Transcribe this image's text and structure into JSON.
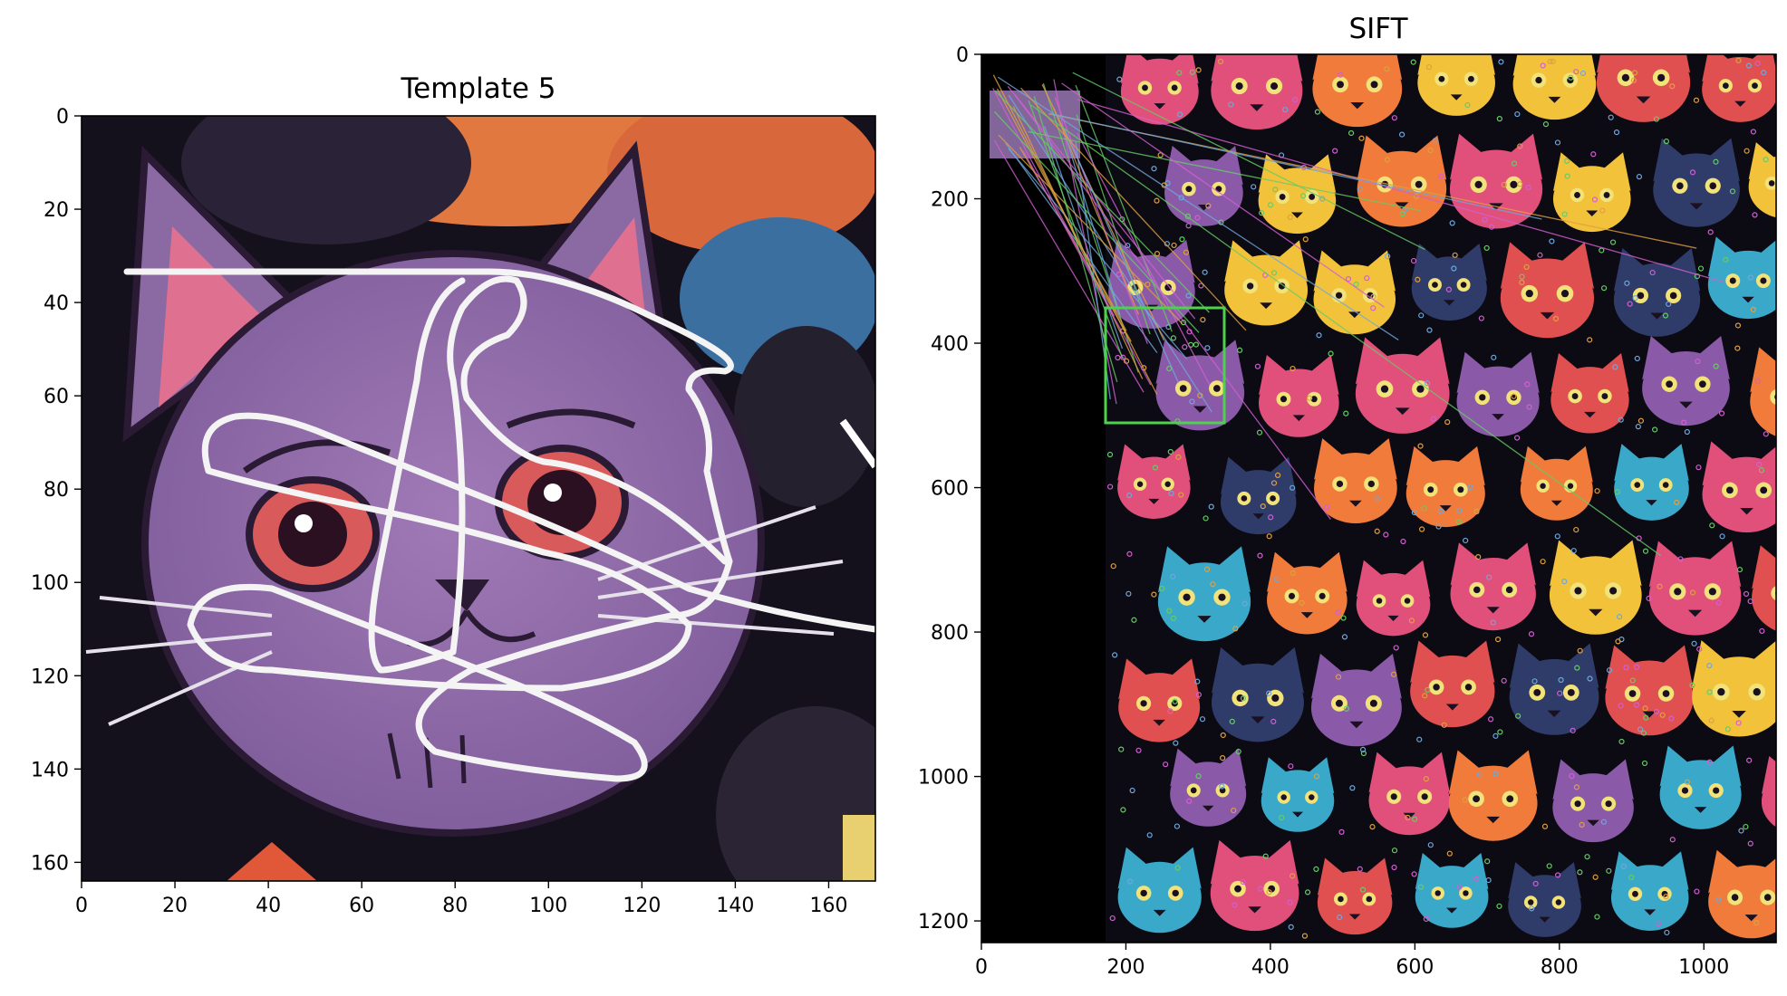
{
  "figure": {
    "panels": [
      {
        "title": "Template 5",
        "x_ticks": [
          "0",
          "20",
          "40",
          "60",
          "80",
          "100",
          "120",
          "140",
          "160"
        ],
        "y_ticks": [
          "0",
          "20",
          "40",
          "60",
          "80",
          "100",
          "120",
          "140",
          "160"
        ],
        "x_range": [
          0,
          170
        ],
        "y_range": [
          0,
          164
        ]
      },
      {
        "title": "SIFT",
        "x_ticks": [
          "0",
          "200",
          "400",
          "600",
          "800",
          "1000"
        ],
        "y_ticks": [
          "0",
          "200",
          "400",
          "600",
          "800",
          "1000",
          "1200"
        ],
        "x_range": [
          0,
          1100
        ],
        "y_range": [
          0,
          1230
        ]
      }
    ],
    "colors": {
      "match_box": "#4cd34c",
      "keypoints": [
        "#d35fd3",
        "#66cc66",
        "#e0a040",
        "#6fa8dc"
      ],
      "cat_palette": [
        "#e0507a",
        "#f07b3a",
        "#3aa8c8",
        "#f2c23a",
        "#8a5aa8",
        "#2f3c6a",
        "#e05050"
      ]
    }
  }
}
